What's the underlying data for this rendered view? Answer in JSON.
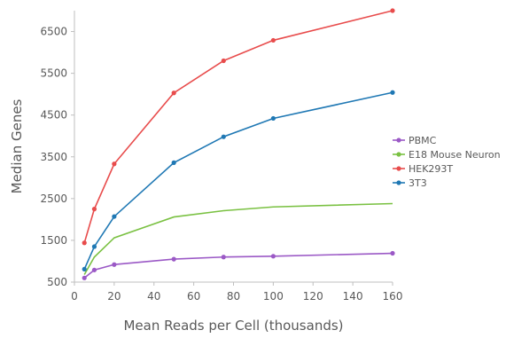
{
  "chart_data": {
    "type": "line",
    "title": "",
    "xlabel": "Mean Reads per Cell (thousands)",
    "ylabel": "Median Genes",
    "xlim": [
      0,
      160
    ],
    "ylim": [
      500,
      7000
    ],
    "xticks": [
      0,
      20,
      40,
      60,
      80,
      100,
      120,
      140,
      160
    ],
    "yticks": [
      500,
      1500,
      2500,
      3500,
      4500,
      5500,
      6500
    ],
    "grid": false,
    "legend_position": "right",
    "series": [
      {
        "name": "PBMC",
        "color": "#9b59c6",
        "markers": true,
        "x": [
          5,
          10,
          20,
          50,
          75,
          100,
          160
        ],
        "y": [
          600,
          790,
          920,
          1050,
          1100,
          1120,
          1190
        ]
      },
      {
        "name": "E18 Mouse Neuron",
        "color": "#7ac142",
        "markers": false,
        "x": [
          5,
          10,
          20,
          50,
          75,
          100,
          160
        ],
        "y": [
          680,
          1100,
          1560,
          2060,
          2210,
          2300,
          2380
        ]
      },
      {
        "name": "HEK293T",
        "color": "#e84c4c",
        "markers": true,
        "x": [
          5,
          10,
          20,
          50,
          75,
          100,
          160
        ],
        "y": [
          1440,
          2250,
          3330,
          5030,
          5800,
          6290,
          7000
        ]
      },
      {
        "name": "3T3",
        "color": "#1f78b4",
        "markers": true,
        "x": [
          5,
          10,
          20,
          50,
          75,
          100,
          160
        ],
        "y": [
          810,
          1350,
          2070,
          3360,
          3980,
          4420,
          5040
        ]
      }
    ]
  }
}
